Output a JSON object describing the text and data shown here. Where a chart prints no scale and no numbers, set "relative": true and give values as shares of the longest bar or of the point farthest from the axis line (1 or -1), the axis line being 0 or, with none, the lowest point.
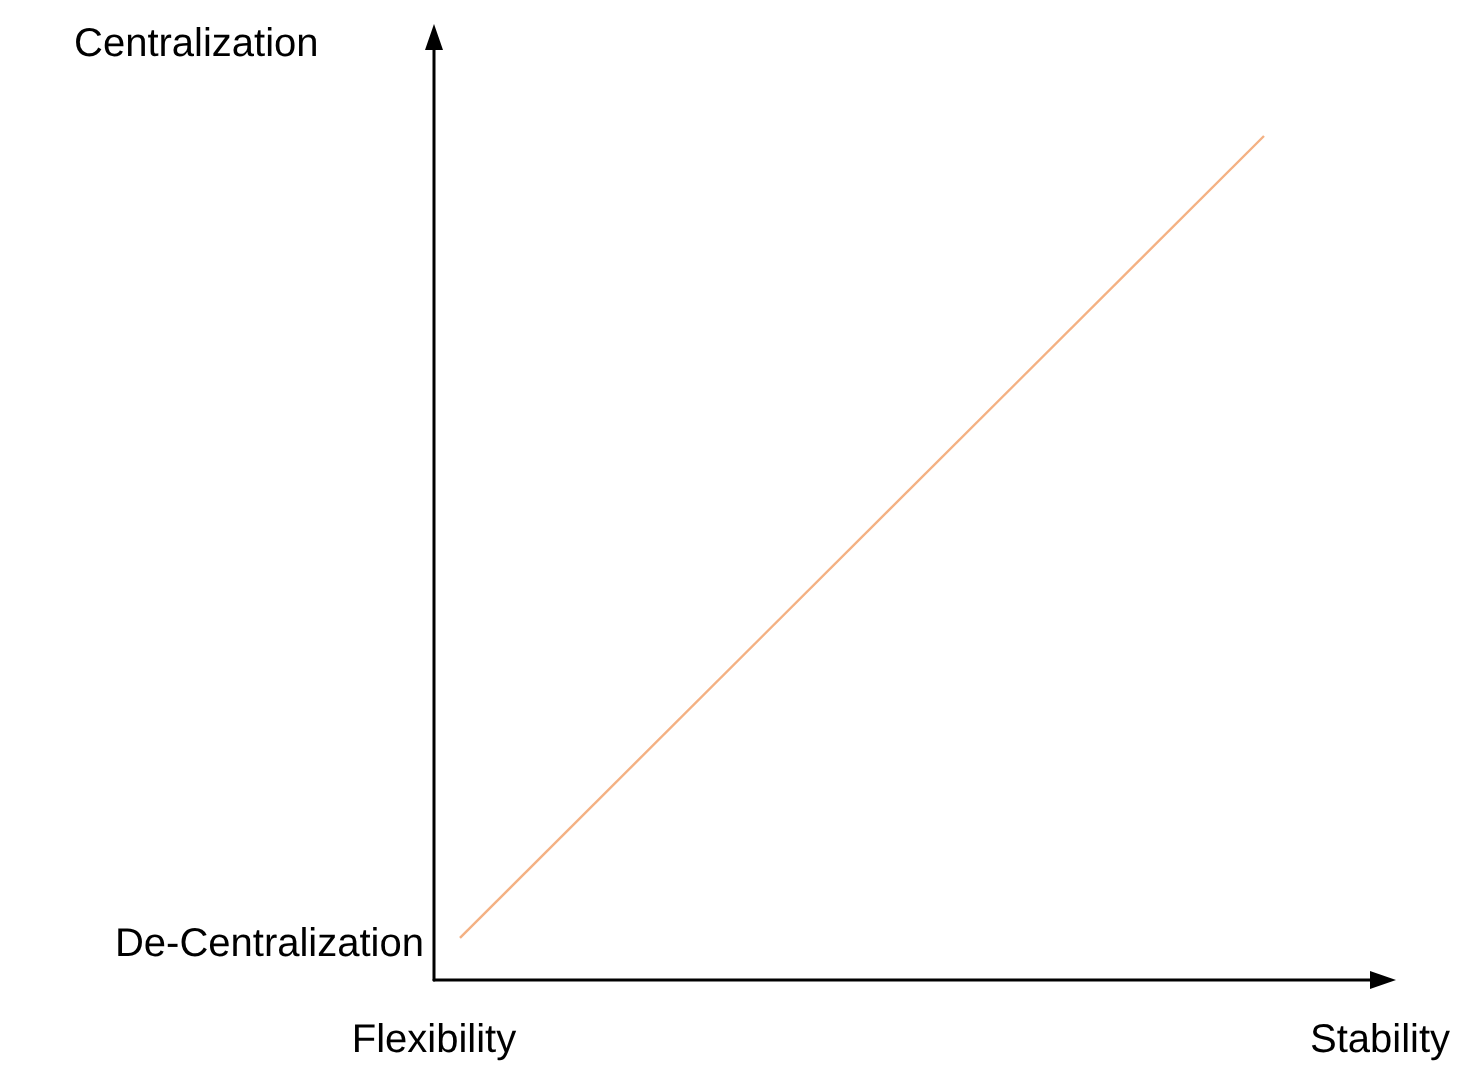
{
  "chart_data": {
    "type": "line",
    "relative": true,
    "ylabel": "Centralization",
    "xlabel": "Stability",
    "annotations": [
      "De-Centralization",
      "Flexibility"
    ],
    "categories": [
      null,
      null
    ],
    "series": [
      {
        "color": "#f4b183",
        "values": [
          0.05,
          1
        ]
      }
    ],
    "line_style": "solid",
    "grid": false
  }
}
